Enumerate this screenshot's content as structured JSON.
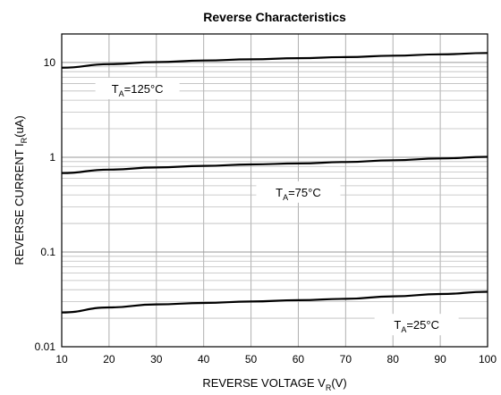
{
  "chart_data": {
    "type": "line",
    "title": "Reverse  Characteristics",
    "xlabel": {
      "main": "REVERSE VOLTAGE  V",
      "sub": "R",
      "unit": "(V)"
    },
    "ylabel": {
      "main": "REVERSE CURRENT  I",
      "sub": "R",
      "unit": "(uA)"
    },
    "xlim": [
      10,
      100
    ],
    "ylim": [
      0.01,
      20
    ],
    "y_scale": "log",
    "grid": true,
    "x_ticks": [
      "10",
      "20",
      "30",
      "40",
      "50",
      "60",
      "70",
      "80",
      "90",
      "100"
    ],
    "y_ticks": [
      "0.01",
      "0.1",
      "1",
      "10"
    ],
    "x": [
      10,
      20,
      30,
      40,
      50,
      60,
      70,
      80,
      90,
      100
    ],
    "series": [
      {
        "name": "T_A=125°C",
        "label": {
          "main": "T",
          "sub": "A",
          "rest": "=125°C"
        },
        "values": [
          8.8,
          9.6,
          10.1,
          10.5,
          10.8,
          11.1,
          11.4,
          11.8,
          12.2,
          12.6
        ]
      },
      {
        "name": "T_A=75°C",
        "label": {
          "main": "T",
          "sub": "A",
          "rest": "=75°C"
        },
        "values": [
          0.68,
          0.74,
          0.78,
          0.81,
          0.84,
          0.86,
          0.89,
          0.93,
          0.97,
          1.01
        ]
      },
      {
        "name": "T_A=25°C",
        "label": {
          "main": "T",
          "sub": "A",
          "rest": "=25°C"
        },
        "values": [
          0.023,
          0.026,
          0.028,
          0.029,
          0.03,
          0.031,
          0.032,
          0.034,
          0.036,
          0.038
        ]
      }
    ]
  }
}
